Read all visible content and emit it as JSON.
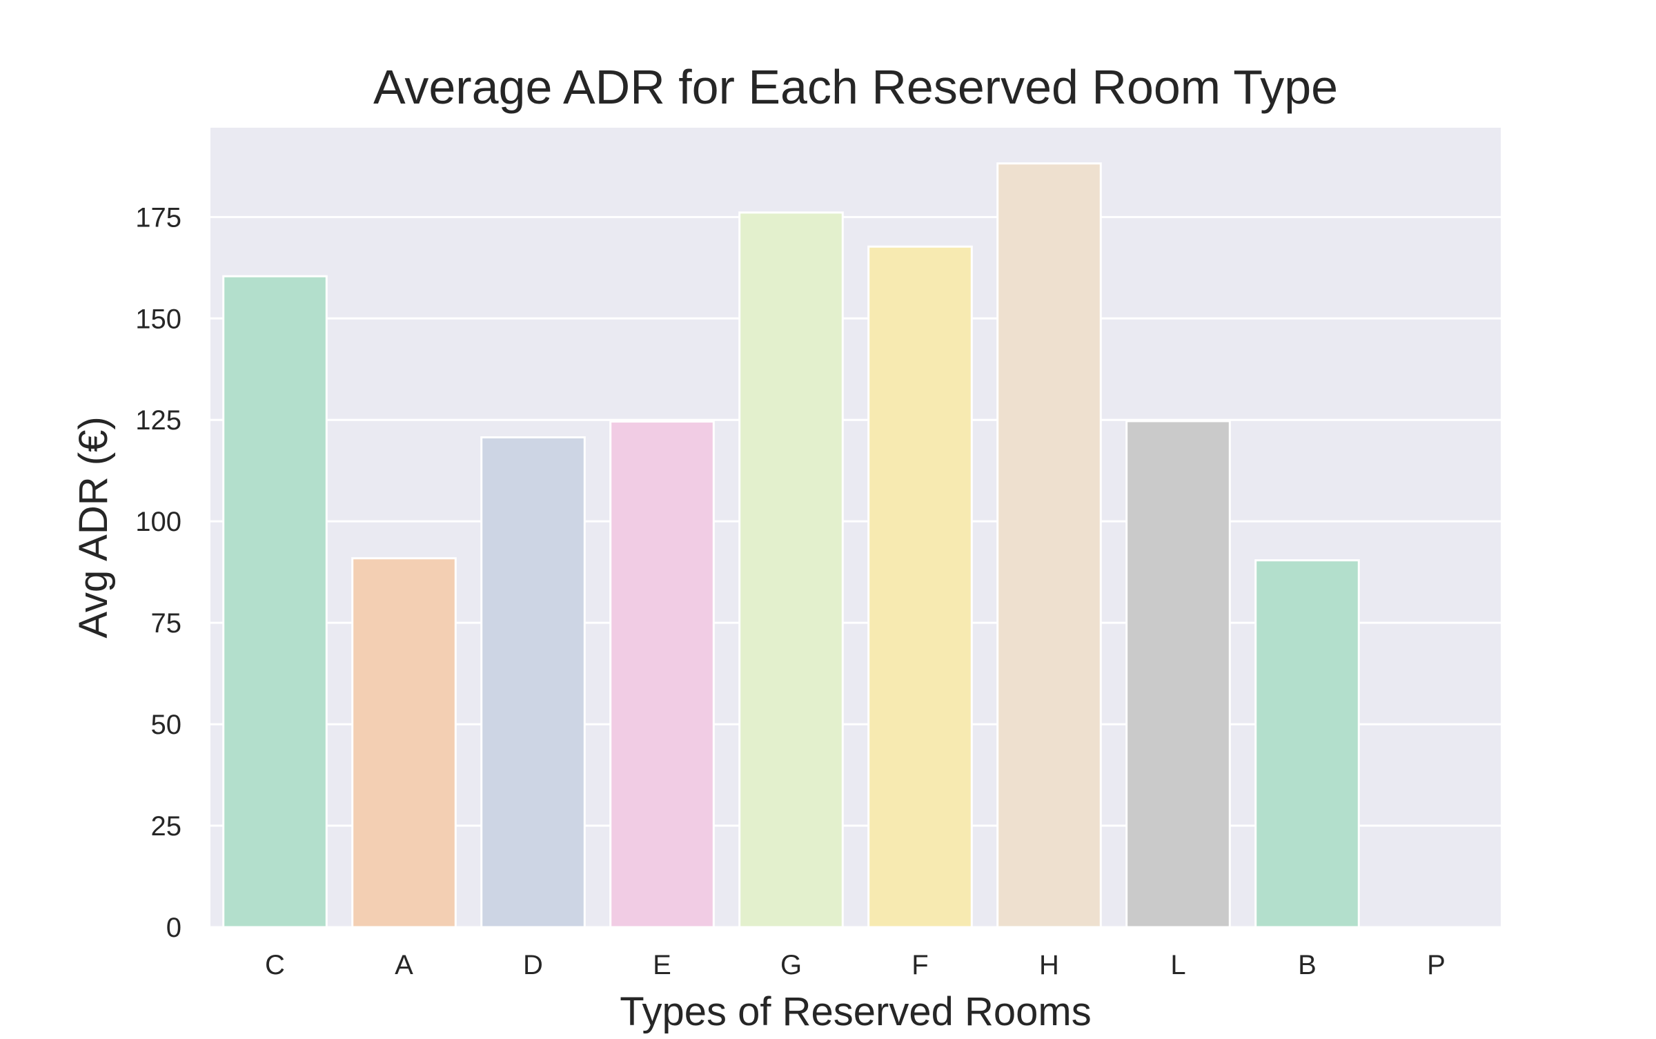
{
  "chart_data": {
    "type": "bar",
    "title": "Average ADR for Each Reserved Room Type",
    "xlabel": "Types of Reserved Rooms",
    "ylabel": "Avg ADR (€)",
    "categories": [
      "C",
      "A",
      "D",
      "E",
      "G",
      "F",
      "H",
      "L",
      "B",
      "P"
    ],
    "values": [
      160.4,
      90.9,
      120.7,
      124.6,
      176.1,
      167.7,
      188.2,
      124.7,
      90.4,
      0
    ],
    "colors": [
      "#b3dfcc",
      "#f3cfb3",
      "#cdd5e4",
      "#f1cce4",
      "#e3f0cd",
      "#f7eab1",
      "#eee0cf",
      "#cacaca",
      "#b3dfcc",
      "#f3cfb3"
    ],
    "ylim": [
      0,
      197
    ],
    "yticks": [
      0,
      25,
      50,
      75,
      100,
      125,
      150,
      175
    ],
    "grid": true,
    "background": "#eaeaf2",
    "gridline_color": "#ffffff",
    "legend": "none"
  }
}
